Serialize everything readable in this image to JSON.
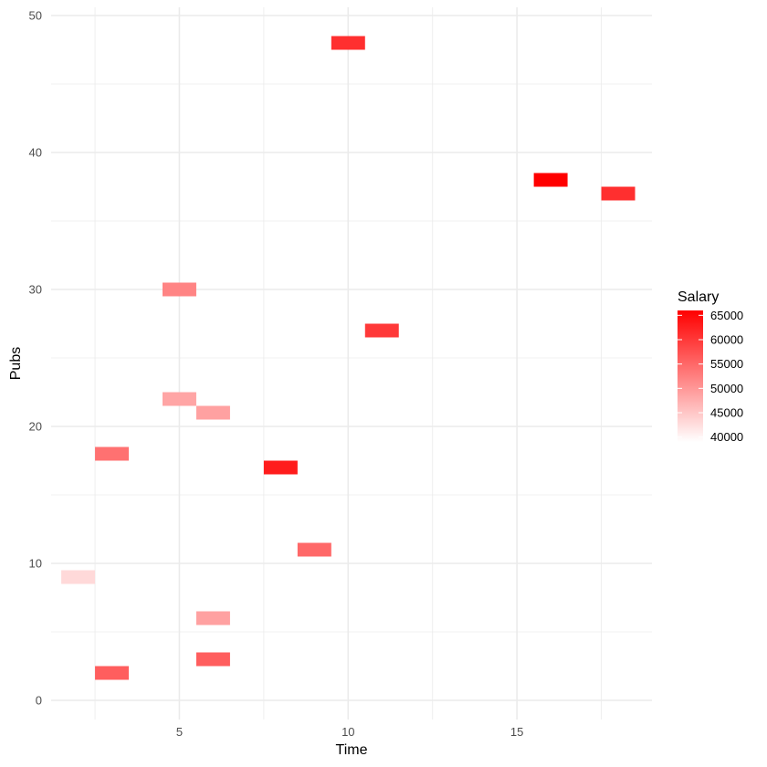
{
  "chart_data": {
    "type": "heatmap",
    "xlabel": "Time",
    "ylabel": "Pubs",
    "xlim": [
      1.2,
      19.0
    ],
    "ylim": [
      -1.4,
      50.6
    ],
    "x_ticks": [
      5,
      10,
      15
    ],
    "y_ticks": [
      0,
      10,
      20,
      30,
      40,
      50
    ],
    "grid": true,
    "legend": {
      "title": "Salary",
      "position": "right",
      "ticks": [
        40000,
        45000,
        50000,
        55000,
        60000,
        65000
      ],
      "min": 39000,
      "max": 66000,
      "low_color": "#ffffff",
      "high_color": "#ff0000"
    },
    "tile_width": 1,
    "tile_height": 1,
    "points": [
      {
        "x": 10,
        "y": 48,
        "salary": 61000
      },
      {
        "x": 16,
        "y": 38,
        "salary": 66000
      },
      {
        "x": 18,
        "y": 37,
        "salary": 61000
      },
      {
        "x": 5,
        "y": 30,
        "salary": 52000
      },
      {
        "x": 11,
        "y": 27,
        "salary": 60000
      },
      {
        "x": 5,
        "y": 22,
        "salary": 48500
      },
      {
        "x": 6,
        "y": 21,
        "salary": 49000
      },
      {
        "x": 3,
        "y": 18,
        "salary": 54000
      },
      {
        "x": 8,
        "y": 17,
        "salary": 63000
      },
      {
        "x": 9,
        "y": 11,
        "salary": 55000
      },
      {
        "x": 2,
        "y": 9,
        "salary": 43000
      },
      {
        "x": 6,
        "y": 6,
        "salary": 49000
      },
      {
        "x": 6,
        "y": 3,
        "salary": 56000
      },
      {
        "x": 3,
        "y": 2,
        "salary": 56000
      }
    ]
  }
}
